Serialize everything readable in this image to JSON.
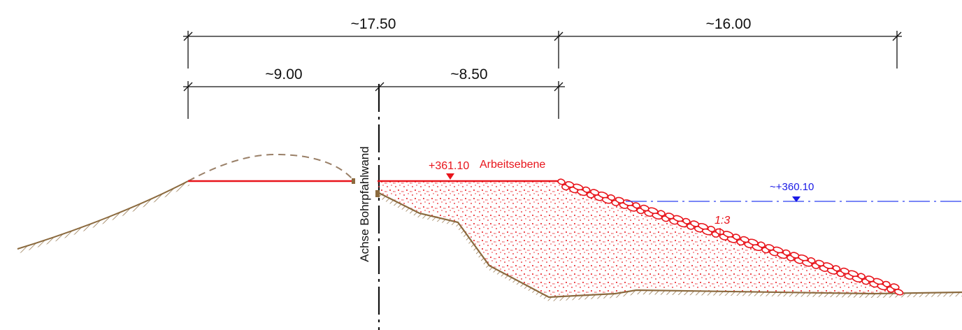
{
  "dimensions": {
    "top_left": "~17.50",
    "top_right": "~16.00",
    "lower_left": "~9.00",
    "lower_right": "~8.50"
  },
  "axis_label": "Achse Bohrpfahlwand",
  "working_level": {
    "elevation": "+361.10",
    "label": "Arbeitsebene"
  },
  "water_level": {
    "elevation": "~+360.10"
  },
  "slope_label": "1:3",
  "colors": {
    "fill_red": "#e8141b",
    "ground_brown": "#8b6a3e",
    "water_blue": "#2a3ef0",
    "dim_black": "#111111"
  }
}
